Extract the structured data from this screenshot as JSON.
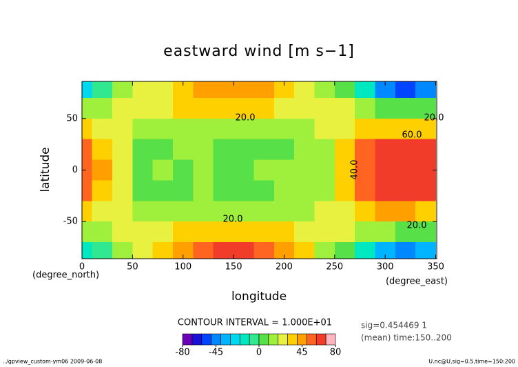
{
  "chart_data": {
    "type": "contour",
    "title": "eastward wind [m s−1]",
    "xlabel": "longitude",
    "ylabel": "latitude",
    "x_unit": "(degree_east)",
    "y_unit": "(degree_north)",
    "xlim": [
      0,
      351
    ],
    "ylim": [
      -86,
      86
    ],
    "xticks": [
      0,
      50,
      100,
      150,
      200,
      250,
      300,
      350
    ],
    "yticks": [
      -50,
      0,
      50
    ],
    "lon": [
      0,
      20,
      40,
      60,
      80,
      100,
      120,
      140,
      160,
      180,
      200,
      220,
      240,
      260,
      280,
      300,
      320,
      340
    ],
    "lat": [
      80,
      60,
      40,
      20,
      0,
      -20,
      -40,
      -60,
      -80
    ],
    "z": [
      [
        -30,
        -10,
        10,
        20,
        25,
        35,
        40,
        45,
        45,
        40,
        35,
        25,
        15,
        5,
        -20,
        -50,
        -60,
        -50
      ],
      [
        10,
        15,
        20,
        20,
        25,
        30,
        30,
        30,
        30,
        30,
        25,
        20,
        20,
        20,
        15,
        5,
        0,
        5
      ],
      [
        30,
        25,
        20,
        15,
        15,
        15,
        15,
        15,
        15,
        15,
        15,
        18,
        20,
        25,
        35,
        35,
        35,
        35
      ],
      [
        50,
        35,
        20,
        8,
        8,
        12,
        15,
        8,
        8,
        8,
        8,
        12,
        18,
        30,
        55,
        65,
        65,
        60
      ],
      [
        55,
        40,
        20,
        8,
        12,
        8,
        15,
        8,
        8,
        12,
        15,
        15,
        18,
        30,
        55,
        60,
        65,
        60
      ],
      [
        50,
        35,
        22,
        8,
        8,
        8,
        12,
        8,
        8,
        8,
        12,
        15,
        18,
        30,
        55,
        65,
        65,
        60
      ],
      [
        30,
        25,
        20,
        12,
        12,
        15,
        15,
        15,
        15,
        15,
        15,
        18,
        20,
        25,
        35,
        40,
        40,
        35
      ],
      [
        10,
        15,
        20,
        20,
        25,
        30,
        35,
        35,
        35,
        35,
        30,
        25,
        20,
        20,
        15,
        10,
        5,
        8
      ],
      [
        -20,
        -10,
        10,
        25,
        35,
        45,
        55,
        60,
        60,
        55,
        45,
        30,
        15,
        0,
        -20,
        -40,
        -50,
        -40
      ]
    ],
    "levels": [
      -80,
      -70,
      -60,
      -50,
      -40,
      -30,
      -20,
      -10,
      0,
      10,
      20,
      30,
      40,
      50,
      60,
      70,
      80
    ],
    "colors": [
      "#6a00b8",
      "#1a10d8",
      "#0044ff",
      "#0088ff",
      "#00b4ff",
      "#00d8f0",
      "#00e8c0",
      "#30e890",
      "#58e048",
      "#9ef03c",
      "#e8f040",
      "#ffd000",
      "#ffa000",
      "#ff6420",
      "#f03c28",
      "#ffb4c0"
    ],
    "colorbar_ticks": [
      -80,
      -45,
      0,
      45,
      80
    ],
    "contour_labels": [
      {
        "value": 20,
        "label": "20.0"
      },
      {
        "value": 20,
        "label": "20.0"
      },
      {
        "value": 60,
        "label": "60.0"
      },
      {
        "value": 40,
        "label": "40.0"
      },
      {
        "value": 20,
        "label": "20.0"
      },
      {
        "value": 20,
        "label": "20.0"
      }
    ],
    "interval_text": "CONTOUR INTERVAL = 1.000E+01",
    "info_lines": [
      "sig=0.454469 1",
      "(mean) time:150..200"
    ],
    "footer_left": "../gpview_custom-ym06  2009-06-08",
    "footer_right": "U.nc@U,sig=0.5,time=150:200"
  }
}
